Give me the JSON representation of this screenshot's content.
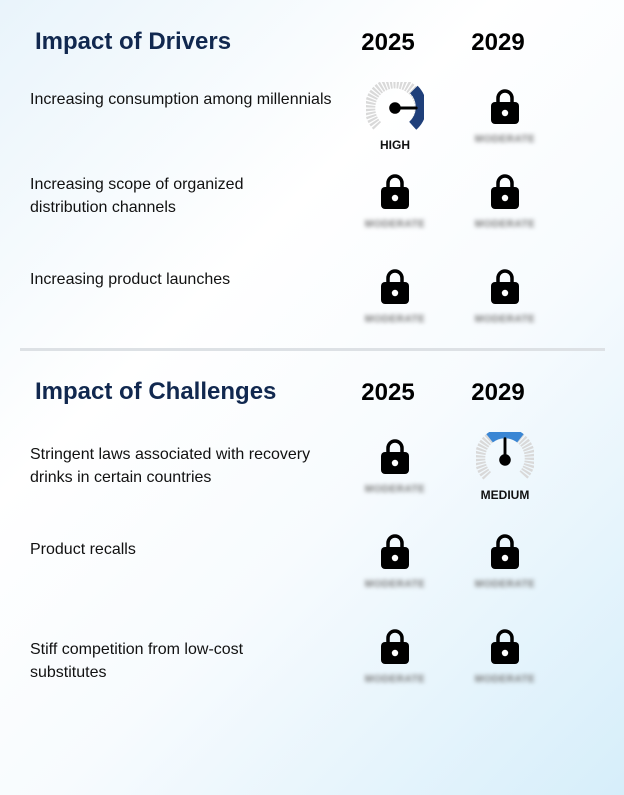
{
  "drivers": {
    "title": "Impact of Drivers",
    "year_a": "2025",
    "year_b": "2029",
    "rows": [
      {
        "label": "Increasing consumption among millennials",
        "val_a": "HIGH",
        "locked_a": false,
        "val_b": "MODERATE",
        "locked_b": true
      },
      {
        "label": "Increasing scope of organized distribution channels",
        "val_a": "MODERATE",
        "locked_a": true,
        "val_b": "MODERATE",
        "locked_b": true
      },
      {
        "label": "Increasing product launches",
        "val_a": "MODERATE",
        "locked_a": true,
        "val_b": "MODERATE",
        "locked_b": true
      }
    ]
  },
  "challenges": {
    "title": "Impact of Challenges",
    "year_a": "2025",
    "year_b": "2029",
    "rows": [
      {
        "label": "Stringent laws associated with recovery drinks in certain countries",
        "val_a": "MODERATE",
        "locked_a": true,
        "val_b": "MEDIUM",
        "locked_b": false
      },
      {
        "label": "Product recalls",
        "val_a": "MODERATE",
        "locked_a": true,
        "val_b": "MODERATE",
        "locked_b": true
      },
      {
        "label": "Stiff competition from low-cost substitutes",
        "val_a": "MODERATE",
        "locked_a": true,
        "val_b": "MODERATE",
        "locked_b": true
      }
    ]
  },
  "colors": {
    "title": "#11284f",
    "gauge_high": "#1f3f7a",
    "gauge_medium": "#3a86d4",
    "gauge_track": "#d9d9d9"
  }
}
